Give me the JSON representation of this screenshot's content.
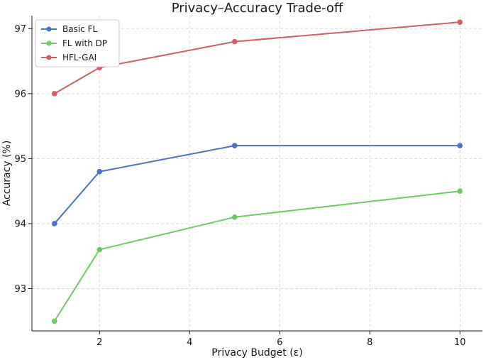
{
  "chart_data": {
    "type": "line",
    "title": "Privacy–Accuracy Trade-off",
    "xlabel": "Privacy Budget (ε)",
    "ylabel": "Accuracy (%)",
    "x": [
      1,
      2,
      5,
      10
    ],
    "xlim": [
      0.5,
      10.5
    ],
    "ylim": [
      92.35,
      97.2
    ],
    "x_ticks": [
      2,
      4,
      6,
      8,
      10
    ],
    "y_ticks": [
      93,
      94,
      95,
      96,
      97
    ],
    "grid": true,
    "legend_position": "top-left",
    "series": [
      {
        "name": "Basic FL",
        "values": [
          94.0,
          94.8,
          95.2,
          95.2
        ],
        "color": "#4a72c8"
      },
      {
        "name": "FL with DP",
        "values": [
          92.5,
          93.6,
          94.1,
          94.5
        ],
        "color": "#6acc5c"
      },
      {
        "name": "HFL-GAI",
        "values": [
          96.0,
          96.4,
          96.8,
          97.1
        ],
        "color": "#d35f5f"
      }
    ]
  }
}
